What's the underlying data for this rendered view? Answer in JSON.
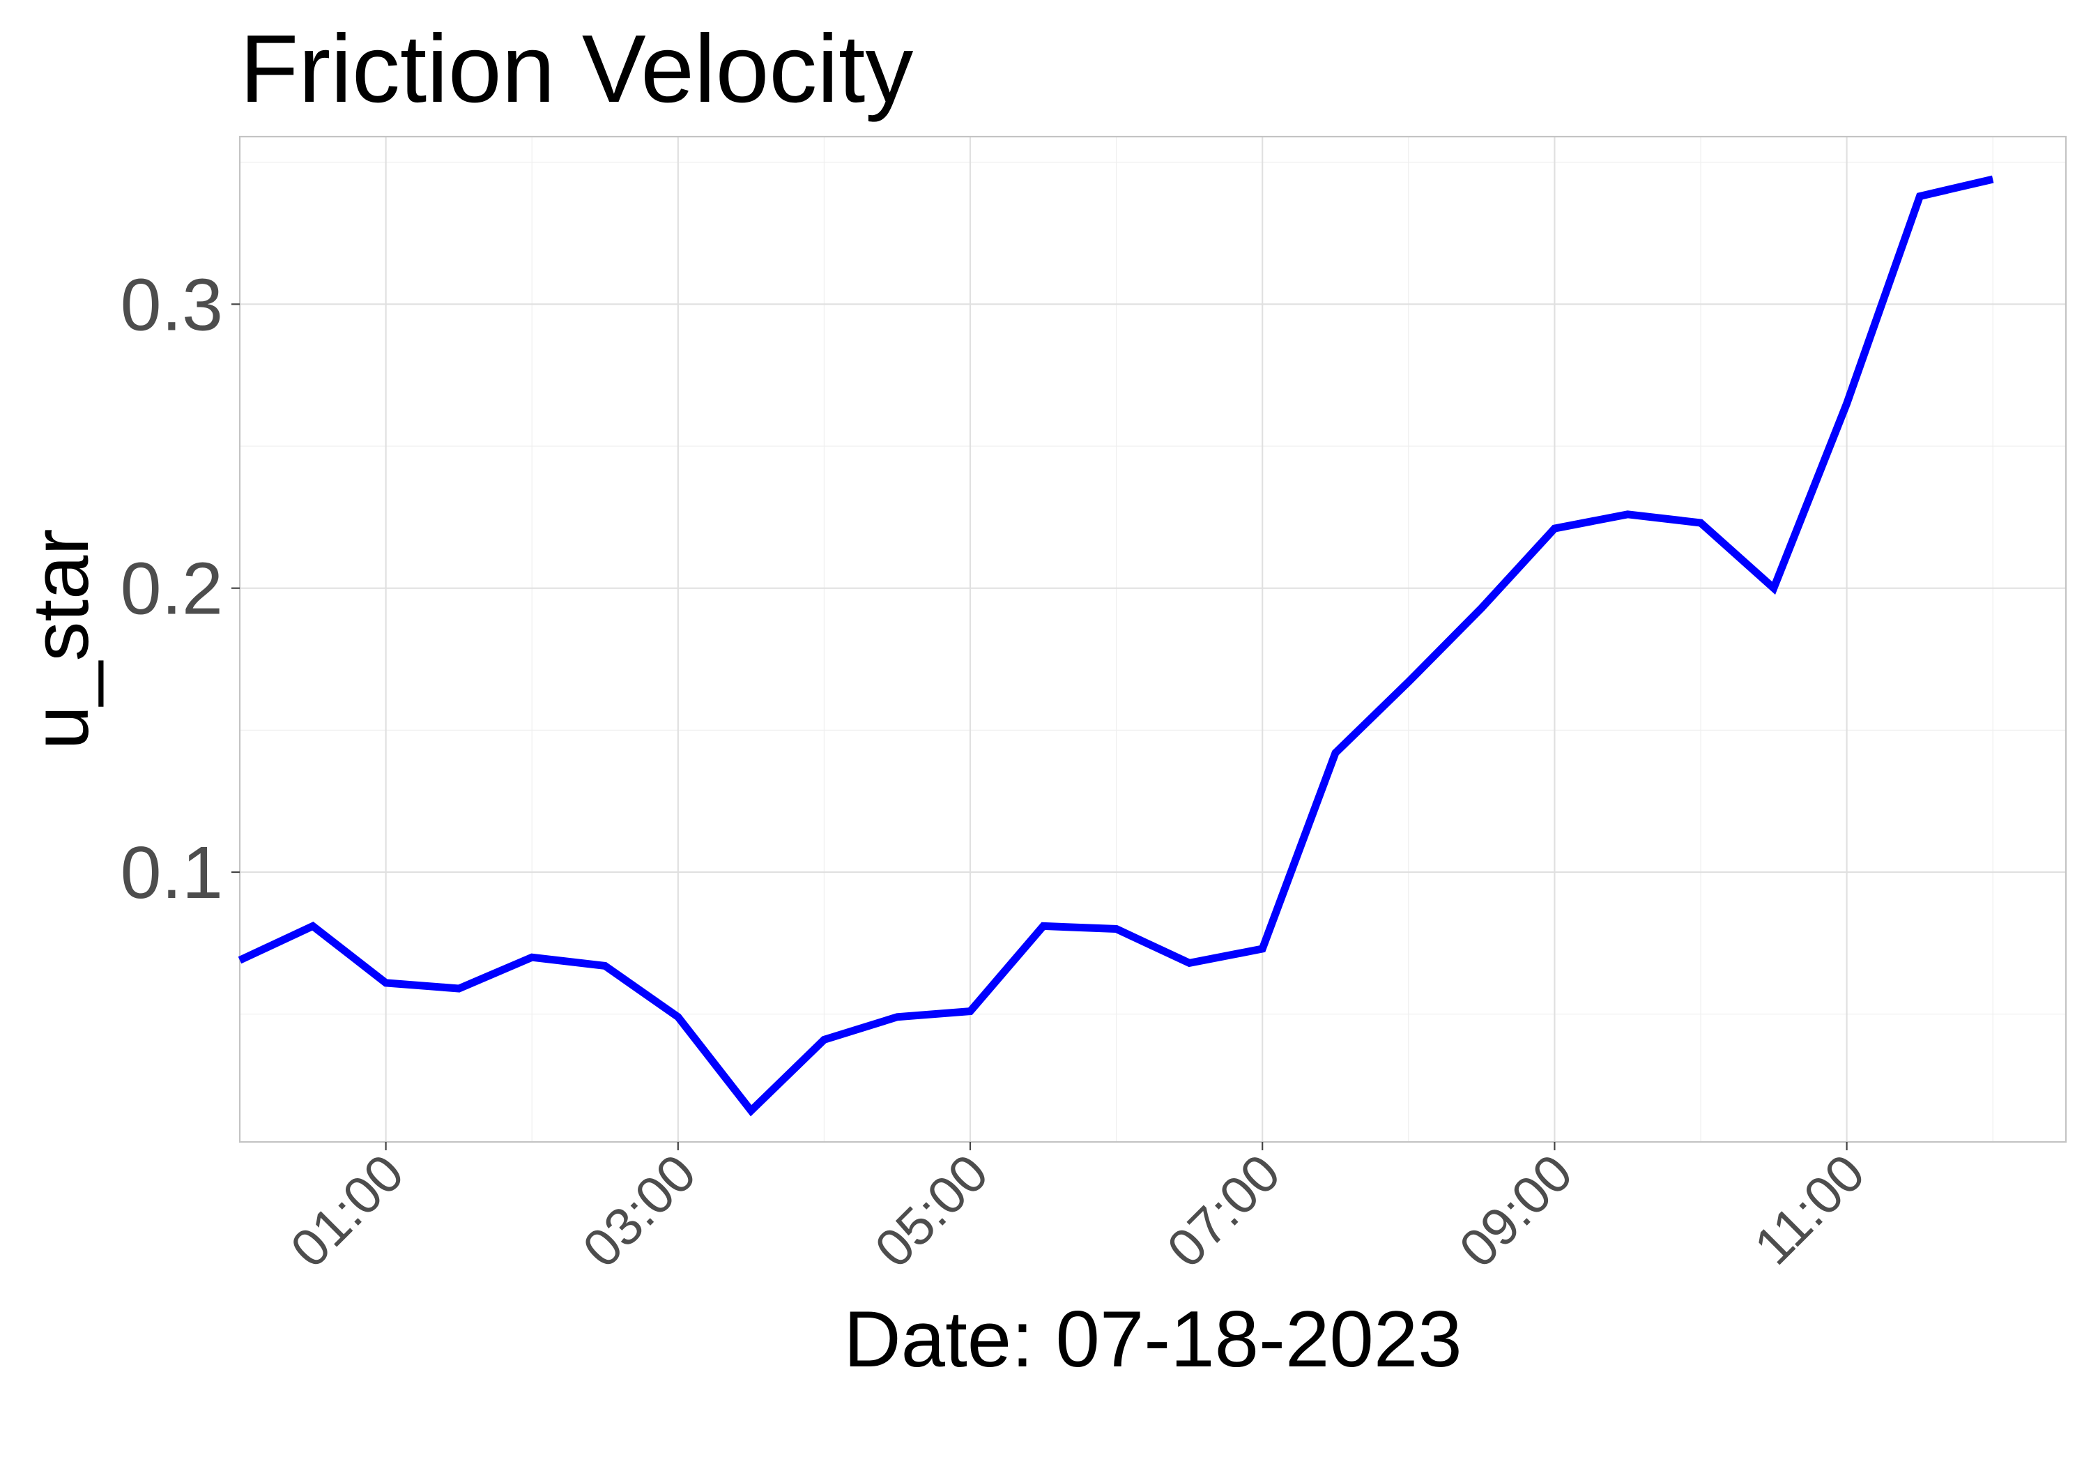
{
  "chart_data": {
    "type": "line",
    "title": "Friction Velocity",
    "xlabel": "Date: 07-18-2023",
    "ylabel": "u_star",
    "x_tick_labels": [
      "01:00",
      "03:00",
      "05:00",
      "07:00",
      "09:00",
      "11:00"
    ],
    "y_tick_labels": [
      "0.1",
      "0.2",
      "0.3"
    ],
    "y_ticks": [
      0.1,
      0.2,
      0.3
    ],
    "xlim": [
      "00:00",
      "12:30"
    ],
    "ylim": [
      0.005,
      0.359
    ],
    "grid": true,
    "series": [
      {
        "color": "#0000ff",
        "x": [
          "00:00",
          "00:30",
          "01:00",
          "01:30",
          "02:00",
          "02:30",
          "03:00",
          "03:30",
          "04:00",
          "04:30",
          "05:00",
          "05:30",
          "06:00",
          "06:30",
          "07:00",
          "07:30",
          "08:00",
          "08:30",
          "09:00",
          "09:30",
          "10:00",
          "10:30",
          "11:00",
          "11:30",
          "12:00"
        ],
        "values": [
          0.069,
          0.081,
          0.061,
          0.059,
          0.07,
          0.067,
          0.049,
          0.016,
          0.041,
          0.049,
          0.051,
          0.081,
          0.08,
          0.068,
          0.073,
          0.142,
          0.167,
          0.193,
          0.221,
          0.226,
          0.223,
          0.2,
          0.265,
          0.338,
          0.344
        ]
      }
    ]
  }
}
